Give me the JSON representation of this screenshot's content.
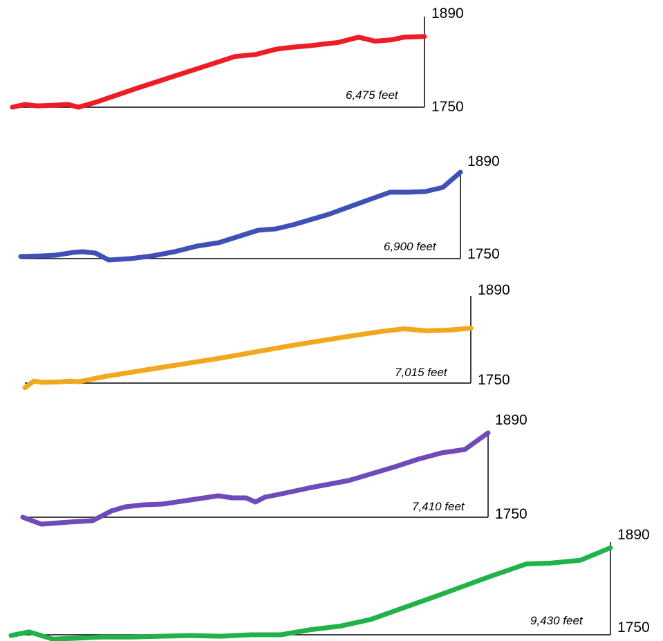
{
  "chart_data": [
    {
      "type": "line",
      "color": "#ee1c24",
      "elevation_label": "6,475 feet",
      "y_top_label": "1890",
      "y_bottom_label": "1750",
      "ylim": [
        1750,
        1890
      ],
      "x": [
        0,
        0.03,
        0.06,
        0.1,
        0.135,
        0.16,
        0.2,
        0.3,
        0.4,
        0.5,
        0.54,
        0.59,
        0.64,
        0.68,
        0.72,
        0.76,
        0.79,
        0.84,
        0.88,
        0.92,
        0.95,
        1.0
      ],
      "values": [
        1750,
        1754,
        1752,
        1753,
        1754,
        1750,
        1757,
        1778,
        1798,
        1818,
        1826,
        1829,
        1837,
        1840,
        1842,
        1845,
        1847,
        1855,
        1849,
        1851,
        1855,
        1856
      ]
    },
    {
      "type": "line",
      "color": "#3f51b5",
      "elevation_label": "6,900 feet",
      "y_top_label": "1890",
      "y_bottom_label": "1750",
      "ylim": [
        1750,
        1890
      ],
      "x": [
        0,
        0.05,
        0.08,
        0.12,
        0.14,
        0.17,
        0.2,
        0.25,
        0.3,
        0.35,
        0.4,
        0.45,
        0.48,
        0.5,
        0.54,
        0.58,
        0.62,
        0.7,
        0.8,
        0.84,
        0.88,
        0.92,
        0.96,
        1.0
      ],
      "values": [
        1753,
        1754,
        1755,
        1759,
        1760,
        1758,
        1748,
        1750,
        1754,
        1760,
        1768,
        1773,
        1779,
        1783,
        1791,
        1793,
        1799,
        1814,
        1837,
        1846,
        1846,
        1847,
        1853,
        1875
      ]
    },
    {
      "type": "line",
      "color": "#f0a81e",
      "elevation_label": "7,015 feet",
      "y_top_label": "1890",
      "y_bottom_label": "1750",
      "ylim": [
        1750,
        1890
      ],
      "x": [
        0,
        0.02,
        0.04,
        0.08,
        0.1,
        0.12,
        0.18,
        0.3,
        0.45,
        0.6,
        0.72,
        0.8,
        0.85,
        0.9,
        0.95,
        1.0
      ],
      "values": [
        1743,
        1753,
        1751,
        1752,
        1753,
        1752,
        1760,
        1773,
        1789,
        1807,
        1820,
        1828,
        1832,
        1829,
        1830,
        1833
      ]
    },
    {
      "type": "line",
      "color": "#6f4ab8",
      "elevation_label": "7,410 feet",
      "y_top_label": "1890",
      "y_bottom_label": "1750",
      "ylim": [
        1750,
        1890
      ],
      "x": [
        0,
        0.04,
        0.1,
        0.15,
        0.19,
        0.22,
        0.26,
        0.3,
        0.36,
        0.42,
        0.45,
        0.48,
        0.5,
        0.52,
        0.55,
        0.62,
        0.7,
        0.8,
        0.85,
        0.9,
        0.95,
        1.0
      ],
      "values": [
        1750,
        1740,
        1743,
        1745,
        1759,
        1765,
        1768,
        1769,
        1775,
        1781,
        1778,
        1778,
        1772,
        1779,
        1783,
        1793,
        1803,
        1823,
        1834,
        1843,
        1848,
        1872
      ]
    },
    {
      "type": "line",
      "color": "#21b24a",
      "elevation_label": "9,430 feet",
      "y_top_label": "1890",
      "y_bottom_label": "1750",
      "ylim": [
        1750,
        1890
      ],
      "x": [
        0,
        0.03,
        0.07,
        0.1,
        0.15,
        0.2,
        0.25,
        0.3,
        0.35,
        0.4,
        0.45,
        0.5,
        0.55,
        0.6,
        0.7,
        0.8,
        0.86,
        0.9,
        0.95,
        1.0
      ],
      "values": [
        1749,
        1754,
        1744,
        1745,
        1747,
        1747,
        1748,
        1749,
        1748,
        1750,
        1750,
        1757,
        1762,
        1771,
        1800,
        1830,
        1847,
        1848,
        1852,
        1869
      ]
    }
  ]
}
